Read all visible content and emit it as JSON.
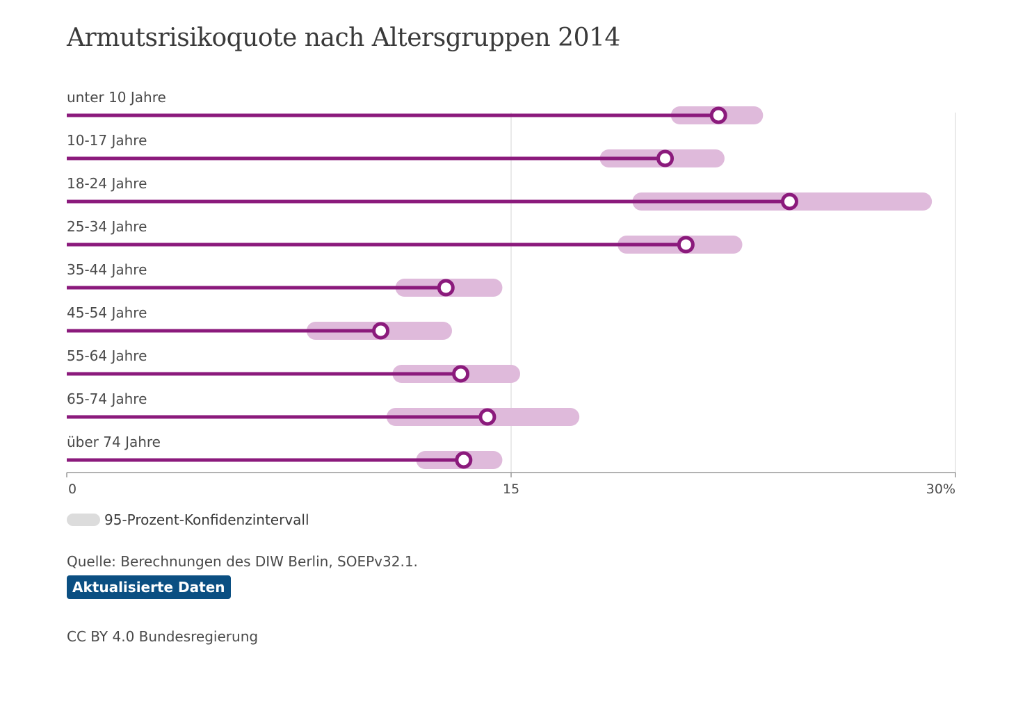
{
  "chart_data": {
    "type": "dot-range",
    "title": "Armutsrisikoquote nach Altersgruppen 2014",
    "xlim": [
      0,
      30
    ],
    "ticks": [
      {
        "value": 0,
        "label": "0"
      },
      {
        "value": 15,
        "label": "15"
      },
      {
        "value": 30,
        "label": "30%"
      }
    ],
    "grid": true,
    "categories": [
      "unter 10 Jahre",
      "10-17 Jahre",
      "18-24 Jahre",
      "25-34 Jahre",
      "35-44 Jahre",
      "45-54 Jahre",
      "55-64 Jahre",
      "65-74 Jahre",
      "über 74 Jahre"
    ],
    "values": [
      22.0,
      20.2,
      24.4,
      20.9,
      12.8,
      10.6,
      13.3,
      14.2,
      13.4
    ],
    "ci_low": [
      20.7,
      18.3,
      19.4,
      18.9,
      11.4,
      8.4,
      11.3,
      11.1,
      12.1
    ],
    "ci_high": [
      23.2,
      21.9,
      28.9,
      22.5,
      14.4,
      12.7,
      15.0,
      17.0,
      14.4
    ],
    "colors": {
      "line": "#8b1a7c",
      "interval": "#dfbadb",
      "grid": "#e3e3e3",
      "axis": "#999999"
    },
    "legend": {
      "label": "95-Prozent-Konfidenzintervall",
      "swatch_color": "#dcdcdc",
      "placement": "bottom-left"
    }
  },
  "footer": {
    "source": "Quelle: Berechnungen des DIW Berlin, SOEPv32.1.",
    "update_button": "Aktualisierte Daten",
    "update_color": "#0b4f82",
    "license": "CC BY 4.0 Bundesregierung"
  }
}
